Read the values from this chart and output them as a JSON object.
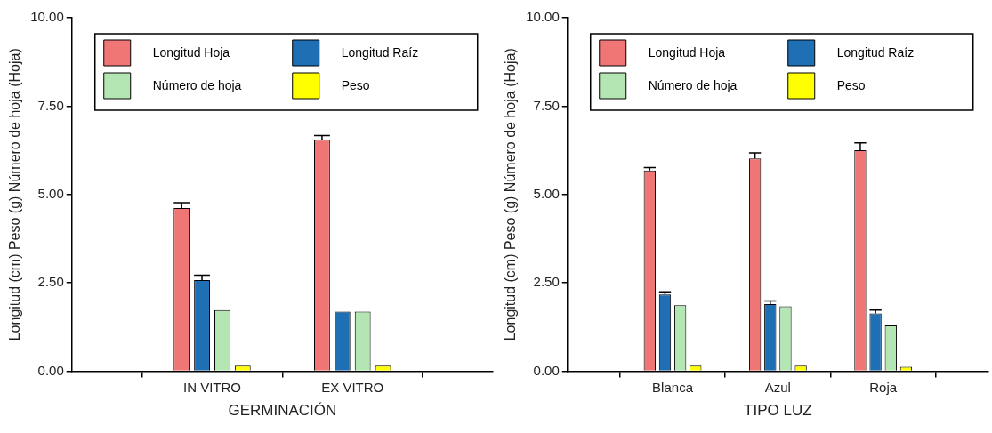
{
  "chart_data": [
    {
      "type": "bar",
      "xlabel": "GERMINACIÓN",
      "ylabel": "Longitud (cm) Peso (g) Número de hoja (Hoja)",
      "categories": [
        "IN VITRO",
        "EX VITRO"
      ],
      "ylim": [
        0,
        10
      ],
      "yticks": [
        {
          "value": 0,
          "label": "0.00"
        },
        {
          "value": 2.5,
          "label": "2.50"
        },
        {
          "value": 5,
          "label": "5.00"
        },
        {
          "value": 7.5,
          "label": "7.50"
        },
        {
          "value": 10,
          "label": "10.00"
        }
      ],
      "grid": false,
      "legend": "top",
      "series": [
        {
          "name": "Longitud Hoja",
          "color": "#f07676",
          "values": [
            4.62,
            6.55
          ],
          "errors": [
            [
              4.62,
              4.77
            ],
            [
              6.55,
              6.67
            ]
          ]
        },
        {
          "name": "Longitud Raíz",
          "color": "#1f6fb5",
          "values": [
            2.58,
            1.69
          ],
          "errors": [
            [
              2.58,
              2.72
            ],
            null
          ]
        },
        {
          "name": "Número de hoja",
          "color": "#b3e6b3",
          "values": [
            1.73,
            1.69
          ]
        },
        {
          "name": "Peso",
          "color": "#ffff00",
          "values": [
            0.16,
            0.16
          ]
        }
      ]
    },
    {
      "type": "bar",
      "xlabel": "TIPO LUZ",
      "ylabel": "Longitud (cm) Peso (g) Número de hoja (Hoja)",
      "categories": [
        "Blanca",
        "Azul",
        "Roja"
      ],
      "ylim": [
        0,
        10
      ],
      "yticks": [
        {
          "value": 0,
          "label": "0.00"
        },
        {
          "value": 2.5,
          "label": "2.50"
        },
        {
          "value": 5,
          "label": "5.00"
        },
        {
          "value": 7.5,
          "label": "7.50"
        },
        {
          "value": 10,
          "label": "10.00"
        }
      ],
      "grid": false,
      "legend": "top",
      "series": [
        {
          "name": "Longitud Hoja",
          "color": "#f07676",
          "values": [
            5.68,
            6.02,
            6.25
          ],
          "errors": [
            [
              5.68,
              5.76
            ],
            [
              6.02,
              6.18
            ],
            [
              6.25,
              6.46
            ]
          ]
        },
        {
          "name": "Longitud Raíz",
          "color": "#1f6fb5",
          "values": [
            2.17,
            1.9,
            1.64
          ],
          "errors": [
            [
              2.17,
              2.25
            ],
            [
              1.9,
              1.99
            ],
            [
              1.64,
              1.73
            ]
          ]
        },
        {
          "name": "Número de hoja",
          "color": "#b3e6b3",
          "values": [
            1.87,
            1.84,
            1.3
          ]
        },
        {
          "name": "Peso",
          "color": "#ffff00",
          "values": [
            0.16,
            0.16,
            0.13
          ]
        }
      ]
    }
  ]
}
